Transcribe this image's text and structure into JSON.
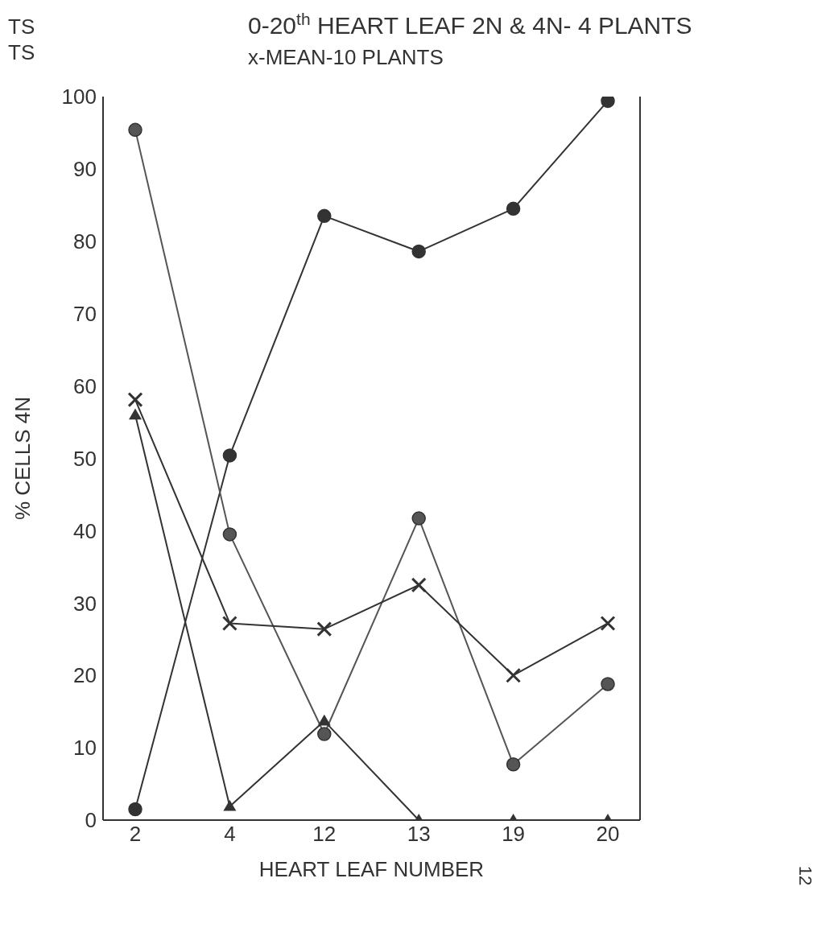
{
  "chart_data": {
    "type": "line",
    "title": "0-20$^{th}$ HEART LEAF 2N & 4N- 4 PLANTS",
    "subtitle": "x-MEAN-10 PLANTS",
    "xlabel": "HEART LEAF NUMBER",
    "ylabel": "% CELLS  4N",
    "annotations": [
      "TS",
      "TS",
      "12"
    ],
    "categories": [
      "2",
      "4",
      "12",
      "13",
      "19",
      "20"
    ],
    "series": [
      {
        "color": "#333333",
        "marker": "circle",
        "values": [
          1.5,
          50.4,
          83.5,
          78.6,
          84.5,
          99.4
        ]
      },
      {
        "color": "#555555",
        "marker": "circle",
        "values": [
          95.4,
          39.5,
          11.9,
          41.7,
          7.7,
          18.8
        ]
      },
      {
        "color": "#333333",
        "marker": "cross",
        "values": [
          58.1,
          27.2,
          26.4,
          32.5,
          20.0,
          27.2
        ]
      },
      {
        "color": "#333333",
        "marker": "triangle",
        "values": [
          56.0,
          1.9,
          13.7,
          0,
          0,
          0
        ]
      }
    ],
    "ylim": [
      0,
      100
    ],
    "yticks": [
      0,
      10,
      20,
      30,
      40,
      50,
      60,
      70,
      80,
      90,
      100
    ],
    "grid": false,
    "legend": false,
    "line_style": "solid"
  }
}
